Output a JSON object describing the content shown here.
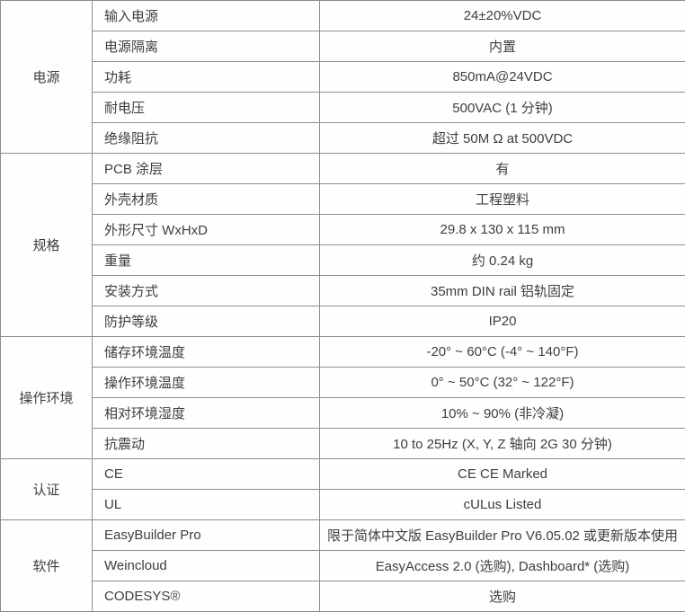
{
  "table": {
    "colors": {
      "text": "#3e3e3e",
      "border": "#8e8e8e",
      "background": "#fefefe"
    },
    "sections": [
      {
        "category": "电源",
        "rows": [
          {
            "label": "输入电源",
            "value": "24±20%VDC"
          },
          {
            "label": "电源隔离",
            "value": "内置"
          },
          {
            "label": "功耗",
            "value": "850mA@24VDC"
          },
          {
            "label": "耐电压",
            "value": "500VAC (1 分钟)"
          },
          {
            "label": "绝缘阻抗",
            "value": "超过 50M Ω at 500VDC"
          }
        ]
      },
      {
        "category": "规格",
        "rows": [
          {
            "label": "PCB 涂层",
            "value": "有"
          },
          {
            "label": "外壳材质",
            "value": "工程塑料"
          },
          {
            "label": "外形尺寸 WxHxD",
            "value": "29.8 x 130 x 115 mm"
          },
          {
            "label": "重量",
            "value": "约 0.24 kg"
          },
          {
            "label": "安装方式",
            "value": "35mm DIN rail 铝轨固定"
          },
          {
            "label": "防护等级",
            "value": "IP20"
          }
        ]
      },
      {
        "category": "操作环境",
        "rows": [
          {
            "label": "储存环境温度",
            "value": "-20° ~ 60°C (-4° ~ 140°F)"
          },
          {
            "label": "操作环境温度",
            "value": "0° ~ 50°C (32° ~ 122°F)"
          },
          {
            "label": "相对环境湿度",
            "value": "10% ~ 90% (非冷凝)"
          },
          {
            "label": "抗震动",
            "value": "10 to 25Hz (X, Y, Z 轴向 2G 30 分钟)"
          }
        ]
      },
      {
        "category": "认证",
        "rows": [
          {
            "label": "CE",
            "value": "CE CE Marked"
          },
          {
            "label": "UL",
            "value": "cULus Listed"
          }
        ]
      },
      {
        "category": "软件",
        "rows": [
          {
            "label": "EasyBuilder Pro",
            "value": "限于简体中文版 EasyBuilder Pro V6.05.02 或更新版本使用"
          },
          {
            "label": "Weincloud",
            "value": "EasyAccess 2.0 (选购), Dashboard* (选购)"
          },
          {
            "label": "CODESYS®",
            "value": "选购"
          }
        ]
      }
    ]
  }
}
